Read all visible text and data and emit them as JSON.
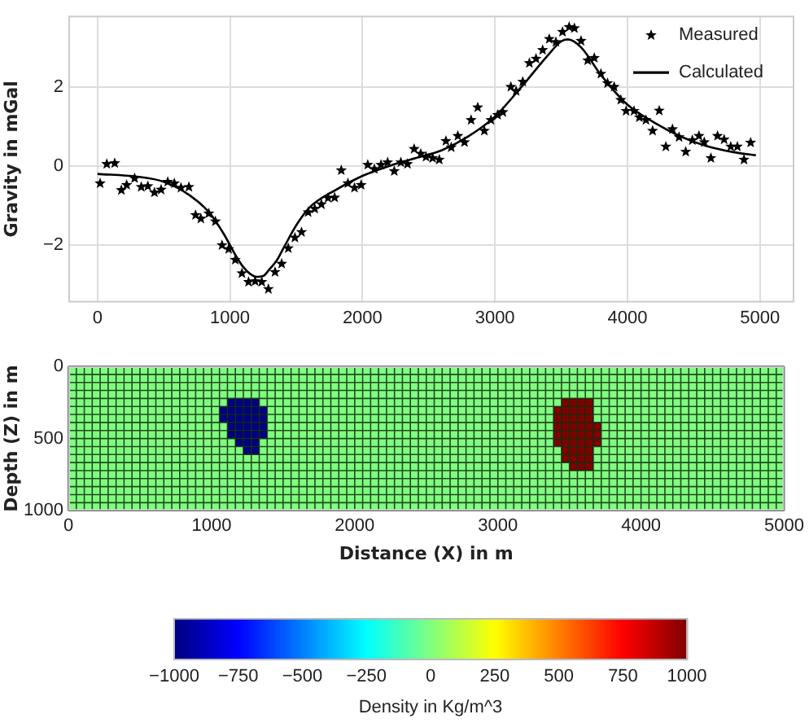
{
  "chart_data": [
    {
      "type": "line",
      "ylabel": "Gravity in mGal",
      "xlim": [
        -220,
        5260
      ],
      "xticks": [
        0,
        1000,
        2000,
        3000,
        4000,
        5000
      ],
      "ylim": [
        -3.45,
        3.8
      ],
      "yticks": [
        -2,
        0,
        2
      ],
      "grid": true,
      "legend": "top right",
      "series": [
        {
          "name": "Measured",
          "type": "scatter",
          "marker": "star",
          "color": "#000000",
          "x": [
            20,
            70,
            130,
            180,
            220,
            280,
            330,
            380,
            430,
            480,
            530,
            580,
            630,
            690,
            740,
            780,
            840,
            890,
            940,
            990,
            1040,
            1090,
            1140,
            1190,
            1240,
            1290,
            1340,
            1390,
            1440,
            1490,
            1540,
            1590,
            1640,
            1690,
            1740,
            1790,
            1840,
            1890,
            1940,
            1990,
            2040,
            2090,
            2140,
            2190,
            2240,
            2290,
            2340,
            2390,
            2440,
            2480,
            2530,
            2580,
            2630,
            2670,
            2720,
            2770,
            2820,
            2870,
            2920,
            2970,
            3020,
            3060,
            3120,
            3160,
            3210,
            3260,
            3310,
            3360,
            3410,
            3460,
            3510,
            3560,
            3600,
            3650,
            3700,
            3750,
            3800,
            3850,
            3900,
            3950,
            3990,
            4050,
            4090,
            4140,
            4190,
            4240,
            4290,
            4340,
            4390,
            4440,
            4490,
            4540,
            4580,
            4630,
            4680,
            4730,
            4780,
            4830,
            4880,
            4930
          ],
          "values": [
            -0.44,
            0.05,
            0.07,
            -0.61,
            -0.48,
            -0.31,
            -0.53,
            -0.51,
            -0.67,
            -0.6,
            -0.4,
            -0.44,
            -0.55,
            -0.53,
            -1.24,
            -1.33,
            -1.2,
            -1.4,
            -2.0,
            -2.1,
            -2.37,
            -2.71,
            -2.93,
            -2.91,
            -2.93,
            -3.11,
            -2.68,
            -2.47,
            -2.08,
            -1.81,
            -1.67,
            -1.17,
            -1.08,
            -0.97,
            -0.81,
            -0.8,
            -0.11,
            -0.44,
            -0.55,
            -0.48,
            0.03,
            -0.08,
            0.03,
            0.09,
            -0.13,
            0.09,
            0.05,
            0.43,
            0.31,
            0.23,
            0.2,
            0.16,
            0.63,
            0.47,
            0.76,
            0.6,
            1.16,
            1.48,
            0.89,
            1.16,
            1.29,
            1.36,
            2.0,
            1.89,
            2.13,
            2.6,
            2.71,
            2.93,
            3.21,
            3.13,
            3.39,
            3.51,
            3.48,
            3.16,
            2.67,
            2.73,
            2.33,
            2.09,
            2.0,
            1.67,
            1.39,
            1.39,
            1.23,
            1.16,
            0.89,
            1.4,
            0.49,
            0.93,
            0.73,
            0.36,
            0.65,
            0.76,
            0.6,
            0.2,
            0.76,
            0.67,
            0.49,
            0.49,
            0.16,
            0.59
          ]
        },
        {
          "name": "Calculated",
          "type": "line",
          "color": "#000000",
          "x": [
            0,
            300,
            500,
            700,
            850,
            950,
            1050,
            1100,
            1150,
            1200,
            1250,
            1300,
            1350,
            1400,
            1500,
            1600,
            1800,
            2000,
            2200,
            2400,
            2600,
            2800,
            3000,
            3200,
            3400,
            3500,
            3550,
            3650,
            3800,
            4000,
            4200,
            4400,
            4600,
            4800,
            4970
          ],
          "values": [
            -0.2,
            -0.27,
            -0.4,
            -0.75,
            -1.2,
            -1.7,
            -2.3,
            -2.55,
            -2.72,
            -2.8,
            -2.78,
            -2.6,
            -2.4,
            -2.1,
            -1.5,
            -1.05,
            -0.6,
            -0.25,
            0.0,
            0.2,
            0.4,
            0.75,
            1.25,
            2.0,
            2.8,
            3.15,
            3.2,
            3.0,
            2.3,
            1.55,
            1.1,
            0.75,
            0.5,
            0.35,
            0.27
          ]
        }
      ]
    },
    {
      "type": "heatmap",
      "grid": true,
      "xlabel": "Distance (X) in m",
      "ylabel": "Depth (Z) in m",
      "clabel": "Density in Kg/m^3",
      "xlim": [
        0,
        5000
      ],
      "xticks": [
        0,
        1000,
        2000,
        3000,
        4000,
        5000
      ],
      "ylim": [
        1000,
        0
      ],
      "yticks": [
        0,
        500,
        1000
      ],
      "clim": [
        -1000,
        1000
      ],
      "cticks": [
        -1000,
        -750,
        -500,
        -250,
        0,
        250,
        500,
        750,
        1000
      ],
      "cells": [
        [
          0,
          0,
          0,
          0,
          0,
          0,
          0,
          0,
          0,
          0,
          0,
          0,
          0,
          0,
          0,
          0,
          0,
          0,
          0,
          0,
          0,
          0,
          0,
          0,
          0,
          0,
          0,
          0,
          0,
          0,
          0,
          0,
          0,
          0,
          0,
          0,
          0,
          0,
          0,
          0,
          0,
          0,
          0,
          0,
          0,
          0,
          0,
          0,
          0,
          0,
          0,
          0,
          0,
          0,
          0,
          0,
          0,
          0,
          0,
          0,
          0,
          0,
          0,
          0,
          0,
          0,
          0,
          0,
          0,
          0,
          0,
          0,
          0,
          0,
          0,
          0,
          0,
          0,
          0,
          0,
          0,
          0,
          0,
          0,
          0,
          0,
          0,
          0,
          0,
          0
        ],
        [
          0,
          0,
          0,
          0,
          0,
          0,
          0,
          0,
          0,
          0,
          0,
          0,
          0,
          0,
          0,
          0,
          0,
          0,
          0,
          0,
          0,
          0,
          0,
          0,
          0,
          0,
          0,
          0,
          0,
          0,
          0,
          0,
          0,
          0,
          0,
          0,
          0,
          0,
          0,
          0,
          0,
          0,
          0,
          0,
          0,
          0,
          0,
          0,
          0,
          0,
          0,
          0,
          0,
          0,
          0,
          0,
          0,
          0,
          0,
          0,
          0,
          0,
          0,
          0,
          0,
          0,
          0,
          0,
          0,
          0,
          0,
          0,
          0,
          0,
          0,
          0,
          0,
          0,
          0,
          0,
          0,
          0,
          0,
          0,
          0,
          0,
          0,
          0,
          0,
          0
        ],
        [
          0,
          0,
          0,
          0,
          0,
          0,
          0,
          0,
          0,
          0,
          0,
          0,
          0,
          0,
          0,
          0,
          0,
          0,
          0,
          0,
          0,
          0,
          0,
          0,
          0,
          0,
          0,
          0,
          0,
          0,
          0,
          0,
          0,
          0,
          0,
          0,
          0,
          0,
          0,
          0,
          0,
          0,
          0,
          0,
          0,
          0,
          0,
          0,
          0,
          0,
          0,
          0,
          0,
          0,
          0,
          0,
          0,
          0,
          0,
          0,
          0,
          0,
          0,
          0,
          0,
          0,
          0,
          0,
          0,
          0,
          0,
          0,
          0,
          0,
          0,
          0,
          0,
          0,
          0,
          0,
          0,
          0,
          0,
          0,
          0,
          0,
          0,
          0,
          0,
          0
        ],
        [
          0,
          0,
          0,
          0,
          0,
          0,
          0,
          0,
          0,
          0,
          0,
          0,
          0,
          0,
          0,
          0,
          0,
          0,
          0,
          0,
          0,
          0,
          0,
          0,
          0,
          0,
          0,
          0,
          0,
          0,
          0,
          0,
          0,
          0,
          0,
          0,
          0,
          0,
          0,
          0,
          0,
          0,
          0,
          0,
          0,
          0,
          0,
          0,
          0,
          0,
          0,
          0,
          0,
          0,
          0,
          0,
          0,
          0,
          0,
          0,
          0,
          0,
          0,
          0,
          0,
          0,
          0,
          0,
          0,
          0,
          0,
          0,
          0,
          0,
          0,
          0,
          0,
          0,
          0,
          0,
          0,
          0,
          0,
          0,
          0,
          0,
          0,
          0,
          0,
          0
        ],
        [
          0,
          0,
          0,
          0,
          0,
          0,
          0,
          0,
          0,
          0,
          0,
          0,
          0,
          0,
          0,
          0,
          0,
          0,
          0,
          0,
          -1000,
          -1000,
          -1000,
          -1000,
          0,
          0,
          0,
          0,
          0,
          0,
          0,
          0,
          0,
          0,
          0,
          0,
          0,
          0,
          0,
          0,
          0,
          0,
          0,
          0,
          0,
          0,
          0,
          0,
          0,
          0,
          0,
          0,
          0,
          0,
          0,
          0,
          0,
          0,
          0,
          0,
          0,
          0,
          1000,
          1000,
          1000,
          1000,
          0,
          0,
          0,
          0,
          0,
          0,
          0,
          0,
          0,
          0,
          0,
          0,
          0,
          0,
          0,
          0,
          0,
          0,
          0,
          0,
          0,
          0,
          0,
          0
        ],
        [
          0,
          0,
          0,
          0,
          0,
          0,
          0,
          0,
          0,
          0,
          0,
          0,
          0,
          0,
          0,
          0,
          0,
          0,
          0,
          -1000,
          -1000,
          -1000,
          -1000,
          -1000,
          -1000,
          0,
          0,
          0,
          0,
          0,
          0,
          0,
          0,
          0,
          0,
          0,
          0,
          0,
          0,
          0,
          0,
          0,
          0,
          0,
          0,
          0,
          0,
          0,
          0,
          0,
          0,
          0,
          0,
          0,
          0,
          0,
          0,
          0,
          0,
          0,
          0,
          1000,
          1000,
          1000,
          1000,
          1000,
          0,
          0,
          0,
          0,
          0,
          0,
          0,
          0,
          0,
          0,
          0,
          0,
          0,
          0,
          0,
          0,
          0,
          0,
          0,
          0,
          0,
          0,
          0,
          0
        ],
        [
          0,
          0,
          0,
          0,
          0,
          0,
          0,
          0,
          0,
          0,
          0,
          0,
          0,
          0,
          0,
          0,
          0,
          0,
          0,
          -1000,
          -1000,
          -1000,
          -1000,
          -1000,
          -1000,
          0,
          0,
          0,
          0,
          0,
          0,
          0,
          0,
          0,
          0,
          0,
          0,
          0,
          0,
          0,
          0,
          0,
          0,
          0,
          0,
          0,
          0,
          0,
          0,
          0,
          0,
          0,
          0,
          0,
          0,
          0,
          0,
          0,
          0,
          0,
          0,
          1000,
          1000,
          1000,
          1000,
          1000,
          0,
          0,
          0,
          0,
          0,
          0,
          0,
          0,
          0,
          0,
          0,
          0,
          0,
          0,
          0,
          0,
          0,
          0,
          0,
          0,
          0,
          0,
          0,
          0
        ],
        [
          0,
          0,
          0,
          0,
          0,
          0,
          0,
          0,
          0,
          0,
          0,
          0,
          0,
          0,
          0,
          0,
          0,
          0,
          0,
          0,
          -1000,
          -1000,
          -1000,
          -1000,
          -1000,
          0,
          0,
          0,
          0,
          0,
          0,
          0,
          0,
          0,
          0,
          0,
          0,
          0,
          0,
          0,
          0,
          0,
          0,
          0,
          0,
          0,
          0,
          0,
          0,
          0,
          0,
          0,
          0,
          0,
          0,
          0,
          0,
          0,
          0,
          0,
          0,
          1000,
          1000,
          1000,
          1000,
          1000,
          1000,
          0,
          0,
          0,
          0,
          0,
          0,
          0,
          0,
          0,
          0,
          0,
          0,
          0,
          0,
          0,
          0,
          0,
          0,
          0,
          0,
          0,
          0,
          0
        ],
        [
          0,
          0,
          0,
          0,
          0,
          0,
          0,
          0,
          0,
          0,
          0,
          0,
          0,
          0,
          0,
          0,
          0,
          0,
          0,
          0,
          -1000,
          -1000,
          -1000,
          -1000,
          -1000,
          0,
          0,
          0,
          0,
          0,
          0,
          0,
          0,
          0,
          0,
          0,
          0,
          0,
          0,
          0,
          0,
          0,
          0,
          0,
          0,
          0,
          0,
          0,
          0,
          0,
          0,
          0,
          0,
          0,
          0,
          0,
          0,
          0,
          0,
          0,
          0,
          1000,
          1000,
          1000,
          1000,
          1000,
          1000,
          0,
          0,
          0,
          0,
          0,
          0,
          0,
          0,
          0,
          0,
          0,
          0,
          0,
          0,
          0,
          0,
          0,
          0,
          0,
          0,
          0,
          0,
          0
        ],
        [
          0,
          0,
          0,
          0,
          0,
          0,
          0,
          0,
          0,
          0,
          0,
          0,
          0,
          0,
          0,
          0,
          0,
          0,
          0,
          0,
          0,
          -1000,
          -1000,
          -1000,
          0,
          0,
          0,
          0,
          0,
          0,
          0,
          0,
          0,
          0,
          0,
          0,
          0,
          0,
          0,
          0,
          0,
          0,
          0,
          0,
          0,
          0,
          0,
          0,
          0,
          0,
          0,
          0,
          0,
          0,
          0,
          0,
          0,
          0,
          0,
          0,
          0,
          1000,
          1000,
          1000,
          1000,
          1000,
          1000,
          0,
          0,
          0,
          0,
          0,
          0,
          0,
          0,
          0,
          0,
          0,
          0,
          0,
          0,
          0,
          0,
          0,
          0,
          0,
          0,
          0,
          0,
          0
        ],
        [
          0,
          0,
          0,
          0,
          0,
          0,
          0,
          0,
          0,
          0,
          0,
          0,
          0,
          0,
          0,
          0,
          0,
          0,
          0,
          0,
          0,
          0,
          -1000,
          -1000,
          0,
          0,
          0,
          0,
          0,
          0,
          0,
          0,
          0,
          0,
          0,
          0,
          0,
          0,
          0,
          0,
          0,
          0,
          0,
          0,
          0,
          0,
          0,
          0,
          0,
          0,
          0,
          0,
          0,
          0,
          0,
          0,
          0,
          0,
          0,
          0,
          0,
          0,
          1000,
          1000,
          1000,
          1000,
          0,
          0,
          0,
          0,
          0,
          0,
          0,
          0,
          0,
          0,
          0,
          0,
          0,
          0,
          0,
          0,
          0,
          0,
          0,
          0,
          0,
          0,
          0,
          0
        ],
        [
          0,
          0,
          0,
          0,
          0,
          0,
          0,
          0,
          0,
          0,
          0,
          0,
          0,
          0,
          0,
          0,
          0,
          0,
          0,
          0,
          0,
          0,
          0,
          0,
          0,
          0,
          0,
          0,
          0,
          0,
          0,
          0,
          0,
          0,
          0,
          0,
          0,
          0,
          0,
          0,
          0,
          0,
          0,
          0,
          0,
          0,
          0,
          0,
          0,
          0,
          0,
          0,
          0,
          0,
          0,
          0,
          0,
          0,
          0,
          0,
          0,
          0,
          1000,
          1000,
          1000,
          1000,
          0,
          0,
          0,
          0,
          0,
          0,
          0,
          0,
          0,
          0,
          0,
          0,
          0,
          0,
          0,
          0,
          0,
          0,
          0,
          0,
          0,
          0,
          0,
          0
        ],
        [
          0,
          0,
          0,
          0,
          0,
          0,
          0,
          0,
          0,
          0,
          0,
          0,
          0,
          0,
          0,
          0,
          0,
          0,
          0,
          0,
          0,
          0,
          0,
          0,
          0,
          0,
          0,
          0,
          0,
          0,
          0,
          0,
          0,
          0,
          0,
          0,
          0,
          0,
          0,
          0,
          0,
          0,
          0,
          0,
          0,
          0,
          0,
          0,
          0,
          0,
          0,
          0,
          0,
          0,
          0,
          0,
          0,
          0,
          0,
          0,
          0,
          0,
          0,
          1000,
          1000,
          1000,
          0,
          0,
          0,
          0,
          0,
          0,
          0,
          0,
          0,
          0,
          0,
          0,
          0,
          0,
          0,
          0,
          0,
          0,
          0,
          0,
          0,
          0,
          0,
          0
        ],
        [
          0,
          0,
          0,
          0,
          0,
          0,
          0,
          0,
          0,
          0,
          0,
          0,
          0,
          0,
          0,
          0,
          0,
          0,
          0,
          0,
          0,
          0,
          0,
          0,
          0,
          0,
          0,
          0,
          0,
          0,
          0,
          0,
          0,
          0,
          0,
          0,
          0,
          0,
          0,
          0,
          0,
          0,
          0,
          0,
          0,
          0,
          0,
          0,
          0,
          0,
          0,
          0,
          0,
          0,
          0,
          0,
          0,
          0,
          0,
          0,
          0,
          0,
          0,
          0,
          0,
          0,
          0,
          0,
          0,
          0,
          0,
          0,
          0,
          0,
          0,
          0,
          0,
          0,
          0,
          0,
          0,
          0,
          0,
          0,
          0,
          0,
          0,
          0,
          0,
          0
        ],
        [
          0,
          0,
          0,
          0,
          0,
          0,
          0,
          0,
          0,
          0,
          0,
          0,
          0,
          0,
          0,
          0,
          0,
          0,
          0,
          0,
          0,
          0,
          0,
          0,
          0,
          0,
          0,
          0,
          0,
          0,
          0,
          0,
          0,
          0,
          0,
          0,
          0,
          0,
          0,
          0,
          0,
          0,
          0,
          0,
          0,
          0,
          0,
          0,
          0,
          0,
          0,
          0,
          0,
          0,
          0,
          0,
          0,
          0,
          0,
          0,
          0,
          0,
          0,
          0,
          0,
          0,
          0,
          0,
          0,
          0,
          0,
          0,
          0,
          0,
          0,
          0,
          0,
          0,
          0,
          0,
          0,
          0,
          0,
          0,
          0,
          0,
          0,
          0,
          0,
          0
        ],
        [
          0,
          0,
          0,
          0,
          0,
          0,
          0,
          0,
          0,
          0,
          0,
          0,
          0,
          0,
          0,
          0,
          0,
          0,
          0,
          0,
          0,
          0,
          0,
          0,
          0,
          0,
          0,
          0,
          0,
          0,
          0,
          0,
          0,
          0,
          0,
          0,
          0,
          0,
          0,
          0,
          0,
          0,
          0,
          0,
          0,
          0,
          0,
          0,
          0,
          0,
          0,
          0,
          0,
          0,
          0,
          0,
          0,
          0,
          0,
          0,
          0,
          0,
          0,
          0,
          0,
          0,
          0,
          0,
          0,
          0,
          0,
          0,
          0,
          0,
          0,
          0,
          0,
          0,
          0,
          0,
          0,
          0,
          0,
          0,
          0,
          0,
          0,
          0,
          0,
          0
        ],
        [
          0,
          0,
          0,
          0,
          0,
          0,
          0,
          0,
          0,
          0,
          0,
          0,
          0,
          0,
          0,
          0,
          0,
          0,
          0,
          0,
          0,
          0,
          0,
          0,
          0,
          0,
          0,
          0,
          0,
          0,
          0,
          0,
          0,
          0,
          0,
          0,
          0,
          0,
          0,
          0,
          0,
          0,
          0,
          0,
          0,
          0,
          0,
          0,
          0,
          0,
          0,
          0,
          0,
          0,
          0,
          0,
          0,
          0,
          0,
          0,
          0,
          0,
          0,
          0,
          0,
          0,
          0,
          0,
          0,
          0,
          0,
          0,
          0,
          0,
          0,
          0,
          0,
          0,
          0,
          0,
          0,
          0,
          0,
          0,
          0,
          0,
          0,
          0,
          0,
          0
        ],
        [
          0,
          0,
          0,
          0,
          0,
          0,
          0,
          0,
          0,
          0,
          0,
          0,
          0,
          0,
          0,
          0,
          0,
          0,
          0,
          0,
          0,
          0,
          0,
          0,
          0,
          0,
          0,
          0,
          0,
          0,
          0,
          0,
          0,
          0,
          0,
          0,
          0,
          0,
          0,
          0,
          0,
          0,
          0,
          0,
          0,
          0,
          0,
          0,
          0,
          0,
          0,
          0,
          0,
          0,
          0,
          0,
          0,
          0,
          0,
          0,
          0,
          0,
          0,
          0,
          0,
          0,
          0,
          0,
          0,
          0,
          0,
          0,
          0,
          0,
          0,
          0,
          0,
          0,
          0,
          0,
          0,
          0,
          0,
          0,
          0,
          0,
          0,
          0,
          0,
          0
        ]
      ]
    }
  ]
}
